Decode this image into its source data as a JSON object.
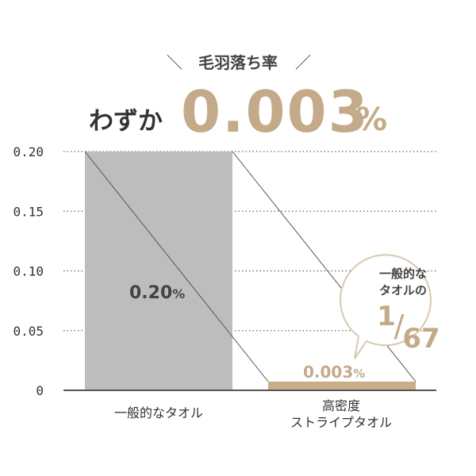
{
  "header": {
    "slash_left": "＼",
    "subtitle": "毛羽落ち率",
    "slash_right": "／",
    "lead_text": "わずか",
    "big_value": "0.003",
    "big_unit": "%"
  },
  "chart_data": {
    "type": "bar",
    "title": "毛羽落ち率",
    "categories": [
      "一般的なタオル",
      "高密度\nストライプタオル"
    ],
    "values": [
      0.2,
      0.003
    ],
    "ylim": [
      0,
      0.2
    ],
    "yticks": [
      "0.20",
      "0.15",
      "0.10",
      "0.05",
      "0"
    ],
    "ytick_values": [
      0.2,
      0.15,
      0.1,
      0.05,
      0
    ],
    "grid": true,
    "bar_labels": [
      {
        "value": "0.20",
        "unit": "%"
      },
      {
        "value": "0.003",
        "unit": "%"
      }
    ],
    "category_labels": [
      [
        "一般的なタオル"
      ],
      [
        "高密度",
        "ストライプタオル"
      ]
    ]
  },
  "bubble": {
    "line1": "一般的な",
    "line2": "タオルの",
    "numerator": "1",
    "slash": "/",
    "denominator": "67"
  },
  "colors": {
    "accent": "#c4aa89",
    "bar_gray": "#bdbdbd",
    "bar_accent": "#c8ad86",
    "text": "#333333",
    "axis": "#555555",
    "bubble_fill": "#ffffff",
    "bubble_stroke": "#d8c8b0"
  }
}
